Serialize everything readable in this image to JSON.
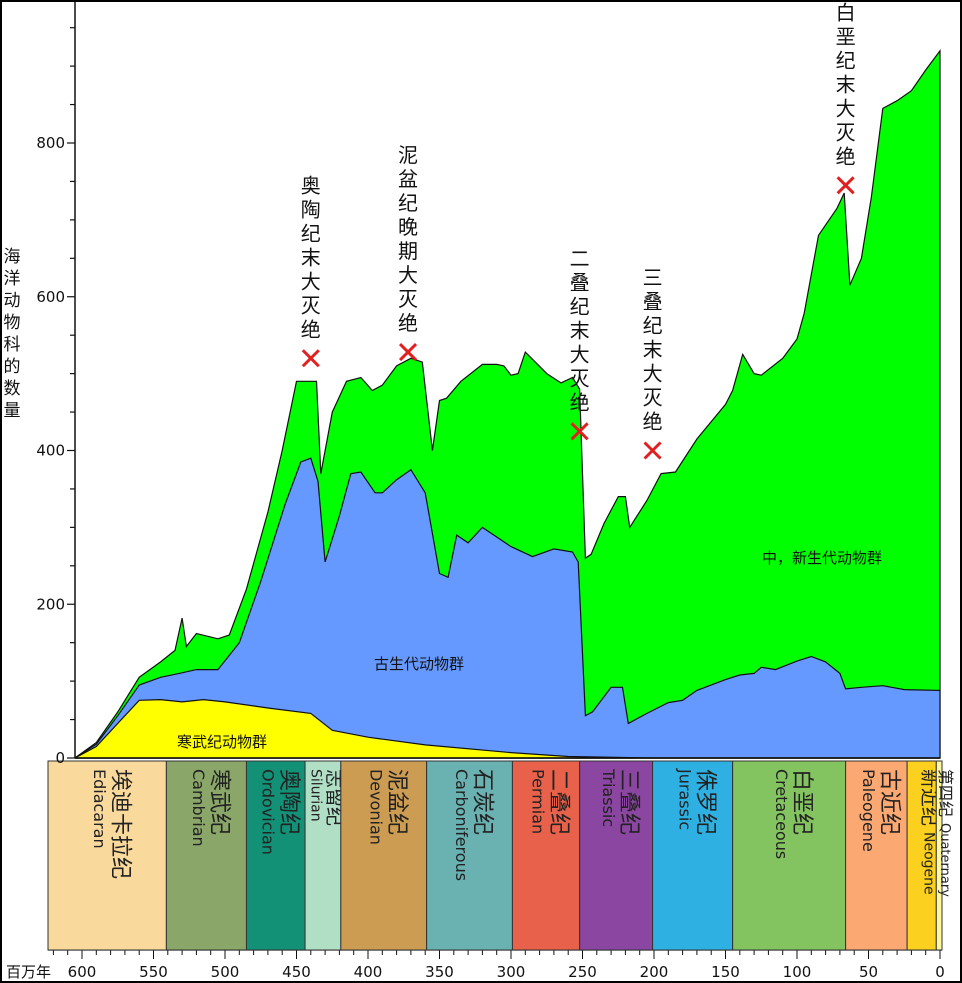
{
  "chart_data": {
    "type": "area",
    "ylabel": "海洋动物科的数量",
    "xunit": "百万年",
    "xlim": [
      620,
      0
    ],
    "ylim": [
      0,
      960
    ],
    "x_ticks": [
      600,
      550,
      500,
      450,
      400,
      350,
      300,
      250,
      200,
      150,
      100,
      50,
      0
    ],
    "y_ticks": [
      0,
      200,
      400,
      600,
      800
    ],
    "y_tick_labels_shown": [
      "0",
      "200",
      "400",
      "600",
      "800"
    ],
    "series": [
      {
        "name": "寒武纪动物群",
        "color": "#ffff00",
        "points": [
          [
            605,
            0
          ],
          [
            590,
            15
          ],
          [
            575,
            45
          ],
          [
            560,
            75
          ],
          [
            545,
            76
          ],
          [
            530,
            73
          ],
          [
            515,
            76
          ],
          [
            500,
            73
          ],
          [
            470,
            65
          ],
          [
            440,
            58
          ],
          [
            425,
            36
          ],
          [
            400,
            27
          ],
          [
            360,
            17
          ],
          [
            300,
            7
          ],
          [
            260,
            2
          ],
          [
            200,
            0
          ],
          [
            0,
            0
          ]
        ]
      },
      {
        "name": "古生代动物群",
        "color": "#6699ff",
        "points": [
          [
            605,
            0
          ],
          [
            590,
            18
          ],
          [
            575,
            55
          ],
          [
            560,
            95
          ],
          [
            545,
            105
          ],
          [
            532,
            110
          ],
          [
            520,
            115
          ],
          [
            505,
            115
          ],
          [
            490,
            150
          ],
          [
            475,
            230
          ],
          [
            458,
            330
          ],
          [
            447,
            385
          ],
          [
            440,
            390
          ],
          [
            435,
            360
          ],
          [
            430,
            255
          ],
          [
            420,
            315
          ],
          [
            412,
            370
          ],
          [
            405,
            372
          ],
          [
            395,
            345
          ],
          [
            390,
            345
          ],
          [
            380,
            362
          ],
          [
            370,
            375
          ],
          [
            360,
            345
          ],
          [
            350,
            240
          ],
          [
            344,
            235
          ],
          [
            338,
            290
          ],
          [
            330,
            280
          ],
          [
            320,
            300
          ],
          [
            300,
            275
          ],
          [
            285,
            262
          ],
          [
            270,
            272
          ],
          [
            257,
            268
          ],
          [
            253,
            255
          ],
          [
            248,
            55
          ],
          [
            243,
            60
          ],
          [
            230,
            92
          ],
          [
            222,
            92
          ],
          [
            218,
            45
          ],
          [
            205,
            58
          ],
          [
            190,
            72
          ],
          [
            180,
            75
          ],
          [
            170,
            88
          ],
          [
            150,
            102
          ],
          [
            140,
            108
          ],
          [
            130,
            110
          ],
          [
            125,
            118
          ],
          [
            115,
            115
          ],
          [
            100,
            126
          ],
          [
            90,
            132
          ],
          [
            80,
            125
          ],
          [
            70,
            110
          ],
          [
            66,
            90
          ],
          [
            55,
            92
          ],
          [
            40,
            94
          ],
          [
            25,
            89
          ],
          [
            0,
            88
          ]
        ]
      },
      {
        "name": "中，新生代动物群",
        "color": "#00ff00",
        "points": [
          [
            605,
            0
          ],
          [
            590,
            20
          ],
          [
            575,
            60
          ],
          [
            560,
            105
          ],
          [
            545,
            125
          ],
          [
            535,
            140
          ],
          [
            530,
            182
          ],
          [
            527,
            145
          ],
          [
            520,
            162
          ],
          [
            505,
            155
          ],
          [
            497,
            160
          ],
          [
            485,
            220
          ],
          [
            470,
            320
          ],
          [
            460,
            400
          ],
          [
            450,
            490
          ],
          [
            440,
            490
          ],
          [
            436,
            490
          ],
          [
            433,
            370
          ],
          [
            425,
            450
          ],
          [
            415,
            490
          ],
          [
            405,
            495
          ],
          [
            397,
            478
          ],
          [
            390,
            485
          ],
          [
            380,
            510
          ],
          [
            370,
            520
          ],
          [
            362,
            515
          ],
          [
            355,
            400
          ],
          [
            350,
            465
          ],
          [
            345,
            468
          ],
          [
            335,
            490
          ],
          [
            320,
            512
          ],
          [
            310,
            512
          ],
          [
            305,
            510
          ],
          [
            300,
            498
          ],
          [
            295,
            500
          ],
          [
            290,
            528
          ],
          [
            275,
            500
          ],
          [
            265,
            488
          ],
          [
            257,
            495
          ],
          [
            252,
            480
          ],
          [
            248,
            260
          ],
          [
            244,
            265
          ],
          [
            235,
            305
          ],
          [
            225,
            340
          ],
          [
            220,
            340
          ],
          [
            217,
            300
          ],
          [
            205,
            335
          ],
          [
            195,
            370
          ],
          [
            185,
            372
          ],
          [
            170,
            415
          ],
          [
            150,
            460
          ],
          [
            145,
            478
          ],
          [
            138,
            525
          ],
          [
            130,
            500
          ],
          [
            125,
            498
          ],
          [
            110,
            520
          ],
          [
            100,
            545
          ],
          [
            95,
            578
          ],
          [
            85,
            680
          ],
          [
            72,
            715
          ],
          [
            67,
            735
          ],
          [
            63,
            615
          ],
          [
            55,
            650
          ],
          [
            48,
            730
          ],
          [
            40,
            845
          ],
          [
            30,
            855
          ],
          [
            20,
            868
          ],
          [
            10,
            895
          ],
          [
            0,
            920
          ]
        ]
      }
    ],
    "annotations": [
      {
        "text": "奥陶纪末大灭绝",
        "x": 440,
        "y": 520
      },
      {
        "text": "泥盆纪晚期大灭绝",
        "x": 372,
        "y": 528
      },
      {
        "text": "二叠纪末大灭绝",
        "x": 252,
        "y": 425
      },
      {
        "text": "三叠纪末大灭绝",
        "x": 201,
        "y": 400
      },
      {
        "text": "白垩纪末大灭绝",
        "x": 66,
        "y": 745
      }
    ],
    "area_labels": [
      "寒武纪动物群",
      "古生代动物群",
      "中，新生代动物群"
    ],
    "periods": [
      {
        "cn": "埃迪卡拉纪",
        "en": "Ediacaran",
        "start": 635,
        "end": 541,
        "color": "#fad99c"
      },
      {
        "cn": "寒武纪",
        "en": "Cambrian",
        "start": 541,
        "end": 485,
        "color": "#8aa669"
      },
      {
        "cn": "奥陶纪",
        "en": "Ordovician",
        "start": 485,
        "end": 444,
        "color": "#129176"
      },
      {
        "cn": "志留纪",
        "en": "Silurian",
        "start": 444,
        "end": 419,
        "color": "#b0dfc6"
      },
      {
        "cn": "泥盆纪",
        "en": "Devonian",
        "start": 419,
        "end": 359,
        "color": "#cc9c52"
      },
      {
        "cn": "石炭纪",
        "en": "Carboniferous",
        "start": 359,
        "end": 299,
        "color": "#6ab1b2"
      },
      {
        "cn": "二叠纪",
        "en": "Permian",
        "start": 299,
        "end": 252,
        "color": "#e8624b"
      },
      {
        "cn": "三叠纪",
        "en": "Triassic",
        "start": 252,
        "end": 201,
        "color": "#8a46a0"
      },
      {
        "cn": "侏罗纪",
        "en": "Jurassic",
        "start": 201,
        "end": 145,
        "color": "#2eb0e2"
      },
      {
        "cn": "白垩纪",
        "en": "Cretaceous",
        "start": 145,
        "end": 66,
        "color": "#84c460"
      },
      {
        "cn": "古近纪",
        "en": "Paleogene",
        "start": 66,
        "end": 23,
        "color": "#fca872"
      },
      {
        "cn": "新近纪",
        "en": "Neogene",
        "start": 23,
        "end": 2.6,
        "color": "#fbd01f"
      },
      {
        "cn": "第四纪",
        "en": "Quaternary",
        "start": 2.6,
        "end": 0,
        "color": "#fff79c"
      }
    ]
  }
}
